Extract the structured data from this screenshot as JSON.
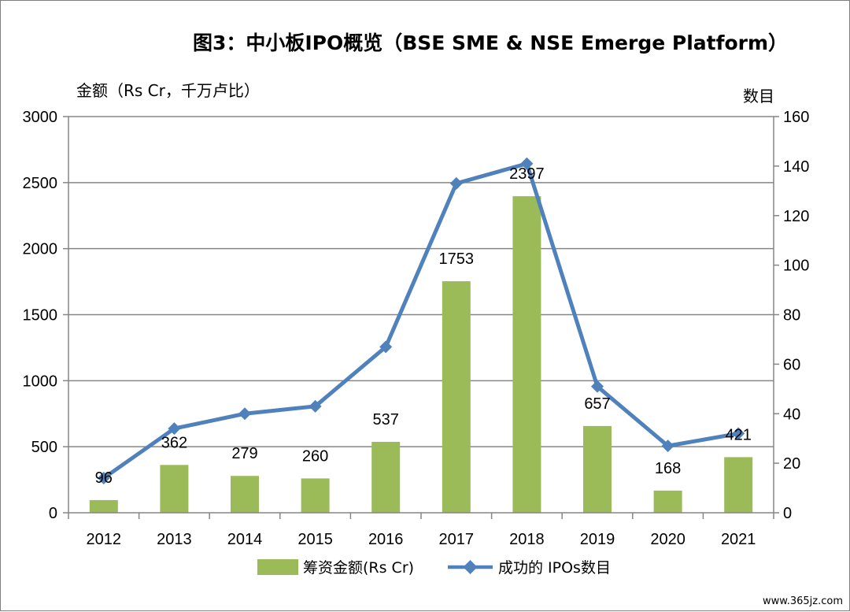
{
  "chart_data": {
    "type": "bar",
    "title": "图3：中小板IPO概览（BSE SME & NSE Emerge Platform）",
    "ylabel": "金额（Rs Cr，千万卢比）",
    "y2label": "数目",
    "categories": [
      "2012",
      "2013",
      "2014",
      "2015",
      "2016",
      "2017",
      "2018",
      "2019",
      "2020",
      "2021"
    ],
    "ylim": [
      0,
      3000
    ],
    "y_ticks": [
      "0",
      "500",
      "1000",
      "1500",
      "2000",
      "2500",
      "3000"
    ],
    "y2lim": [
      0,
      160
    ],
    "y2_ticks": [
      "0",
      "20",
      "40",
      "60",
      "80",
      "100",
      "120",
      "140",
      "160"
    ],
    "grid": true,
    "legend_position": "bottom",
    "series": [
      {
        "name": "筹资金额(Rs Cr)",
        "type": "bar",
        "axis": "left",
        "color": "#9bbb59",
        "values": [
          96,
          362,
          279,
          260,
          537,
          1753,
          2397,
          657,
          168,
          421
        ],
        "labels": [
          "96",
          "362",
          "279",
          "260",
          "537",
          "1753",
          "2397",
          "657",
          "168",
          "421"
        ]
      },
      {
        "name": "成功的 IPOs数目",
        "type": "line",
        "axis": "right",
        "color": "#4f81bd",
        "marker": "diamond",
        "values": [
          14,
          34,
          40,
          43,
          67,
          133,
          141,
          51,
          27,
          32
        ]
      }
    ]
  },
  "watermark": "www.365jz.com"
}
